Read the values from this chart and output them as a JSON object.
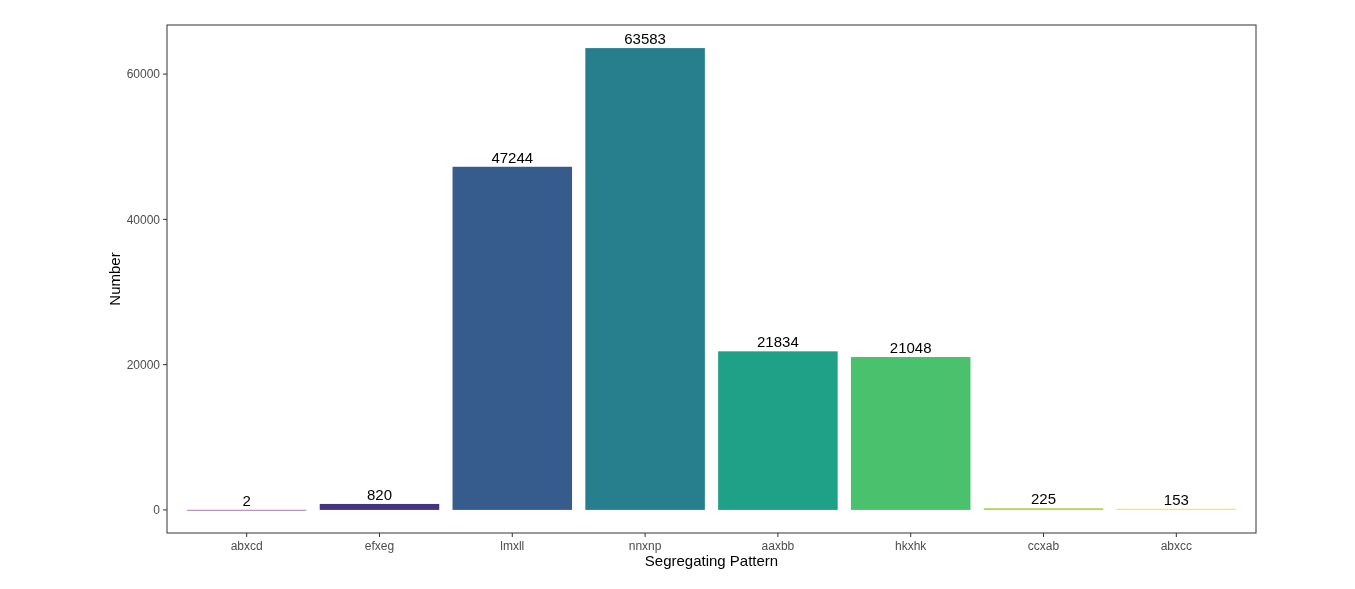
{
  "chart_data": {
    "type": "bar",
    "xlabel": "Segregating Pattern",
    "ylabel": "Number",
    "categories": [
      "abxcd",
      "efxeg",
      "lmxll",
      "nnxnp",
      "aaxbb",
      "hkxhk",
      "ccxab",
      "abxcc"
    ],
    "values": [
      2,
      820,
      47244,
      63583,
      21834,
      21048,
      225,
      153
    ],
    "colors": [
      "#440154",
      "#46337e",
      "#365c8d",
      "#277f8e",
      "#1fa187",
      "#4ac16d",
      "#9fda3a",
      "#fde725"
    ],
    "ylim": [
      -3179,
      66762
    ],
    "yticks": [
      0,
      20000,
      40000,
      60000
    ],
    "grid": false,
    "data_labels": true
  }
}
